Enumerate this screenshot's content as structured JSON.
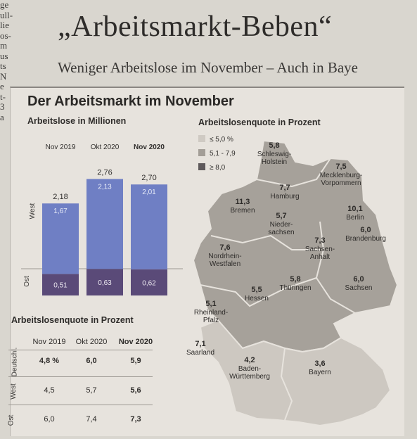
{
  "left_fragment": [
    "ge",
    "ull-",
    "lie",
    "os-",
    "m",
    "us",
    "ts",
    "N",
    "e",
    "t-",
    "3",
    "a"
  ],
  "headline": "„Arbeitsmarkt-Beben“",
  "subline": "Weniger Arbeitslose im November – Auch in Baye",
  "panel_title": "Der Arbeitsmarkt im November",
  "legend": {
    "items": [
      {
        "label": "≤ 5,0 %",
        "color": "#cfcac3"
      },
      {
        "label": "5,1 - 7,9",
        "color": "#a39e97"
      },
      {
        "label": "≥ 8,0",
        "color": "#5f5a5c"
      }
    ]
  },
  "chart_data": [
    {
      "type": "bar",
      "title": "Arbeitslose in Millionen",
      "categories": [
        "Nov 2019",
        "Okt 2020",
        "Nov 2020"
      ],
      "row_labels": [
        "West",
        "Ost"
      ],
      "series": [
        {
          "name": "West",
          "values": [
            "1,67",
            "2,13",
            "2,01"
          ],
          "numeric": [
            1.67,
            2.13,
            2.01
          ],
          "color": "#6f7fc4"
        },
        {
          "name": "Ost",
          "values": [
            "0,51",
            "0,63",
            "0,62"
          ],
          "numeric": [
            0.51,
            0.63,
            0.62
          ],
          "color": "#5a4a78"
        }
      ],
      "totals": [
        "2,18",
        "2,76",
        "2,70"
      ]
    },
    {
      "type": "table",
      "title": "Arbeitslosenquote in Prozent",
      "columns": [
        "Nov 2019",
        "Okt 2020",
        "Nov 2020"
      ],
      "rows": [
        {
          "label": "Deutschl.",
          "values": [
            "4,8 %",
            "6,0",
            "5,9"
          ]
        },
        {
          "label": "West",
          "values": [
            "4,5",
            "5,7",
            "5,6"
          ]
        },
        {
          "label": "Ost",
          "values": [
            "6,0",
            "7,4",
            "7,3"
          ]
        }
      ]
    },
    {
      "type": "map",
      "title": "Arbeitslosenquote in Prozent",
      "states": [
        {
          "name": "Schleswig-Holstein",
          "value": "5,8"
        },
        {
          "name": "Mecklenburg-Vorpommern",
          "value": "7,5"
        },
        {
          "name": "Hamburg",
          "value": "7,7"
        },
        {
          "name": "Bremen",
          "value": "11,3"
        },
        {
          "name": "Berlin",
          "value": "10,1"
        },
        {
          "name": "Niedersachsen",
          "value": "5,7"
        },
        {
          "name": "Brandenburg",
          "value": "6,0"
        },
        {
          "name": "Sachsen-Anhalt",
          "value": "7,3"
        },
        {
          "name": "Nordrhein-Westfalen",
          "value": "7,6"
        },
        {
          "name": "Hessen",
          "value": "5,5"
        },
        {
          "name": "Thüringen",
          "value": "5,8"
        },
        {
          "name": "Sachsen",
          "value": "6,0"
        },
        {
          "name": "Rheinland-Pfalz",
          "value": "5,1"
        },
        {
          "name": "Saarland",
          "value": "7,1"
        },
        {
          "name": "Baden-Württemberg",
          "value": "4,2"
        },
        {
          "name": "Bayern",
          "value": "3,6"
        }
      ]
    }
  ]
}
